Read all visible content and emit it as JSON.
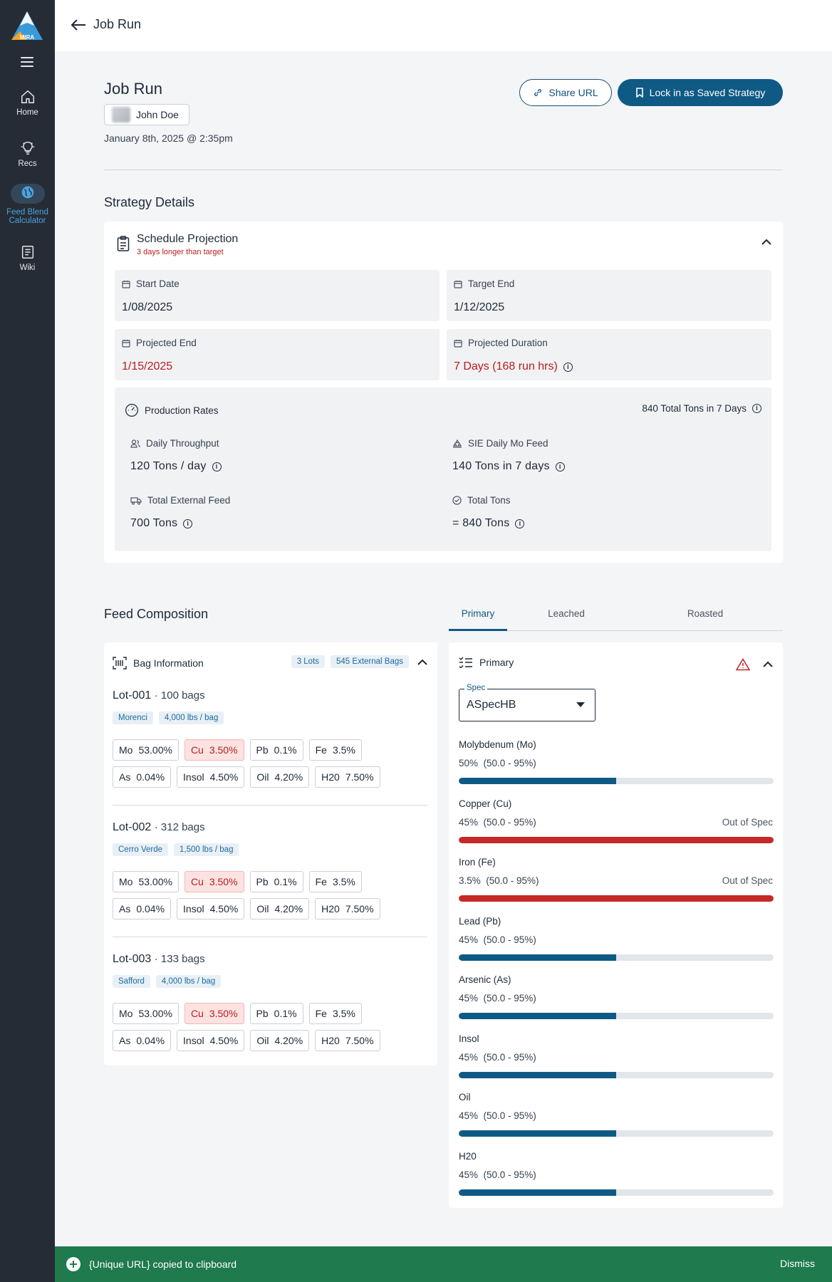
{
  "app": {
    "logo_text": "MIRA"
  },
  "sidebar": {
    "items": [
      {
        "label": "Home"
      },
      {
        "label": "Recs"
      },
      {
        "label_line1": "Feed Blend",
        "label_line2": "Calculator"
      },
      {
        "label": "Wiki"
      }
    ]
  },
  "header": {
    "back_label": "Job Run"
  },
  "page": {
    "title": "Job Run",
    "user_name": "John Doe",
    "date": "January 8th, 2025 @ 2:35pm",
    "share_label": "Share URL",
    "lock_label": "Lock in as Saved Strategy"
  },
  "strategy": {
    "title": "Strategy Details",
    "schedule": {
      "title": "Schedule Projection",
      "subtitle": "3 days longer than target",
      "start_label": "Start Date",
      "start_value": "1/08/2025",
      "target_label": "Target End",
      "target_value": "1/12/2025",
      "projected_label": "Projected End",
      "projected_value": "1/15/2025",
      "duration_label": "Projected Duration",
      "duration_value": "7 Days (168 run hrs)"
    },
    "production": {
      "title": "Production Rates",
      "summary": "840 Total Tons in 7 Days",
      "daily_label": "Daily Throughput",
      "daily_value": "120 Tons / day",
      "sie_label": "SIE Daily Mo Feed",
      "sie_value": "140 Tons in 7 days",
      "external_label": "Total External Feed",
      "external_value": "700 Tons",
      "total_label": "Total Tons",
      "total_value": "= 840 Tons"
    }
  },
  "feed": {
    "title": "Feed Composition",
    "tabs": [
      {
        "label": "Primary"
      },
      {
        "label": "Leached"
      },
      {
        "label": "Roasted"
      }
    ],
    "bag_info": {
      "title": "Bag Information",
      "lots_badge": "3 Lots",
      "bags_badge": "545 External Bags",
      "lots": [
        {
          "name": "Lot-001",
          "bags": "· 100 bags",
          "source": "Morenci",
          "weight": "4,000 lbs / bag",
          "chips": [
            {
              "el": "Mo",
              "v": "53.00%"
            },
            {
              "el": "Cu",
              "v": "3.50%"
            },
            {
              "el": "Pb",
              "v": "0.1%"
            },
            {
              "el": "Fe",
              "v": "3.5%"
            },
            {
              "el": "As",
              "v": "0.04%"
            },
            {
              "el": "Insol",
              "v": "4.50%"
            },
            {
              "el": "Oil",
              "v": "4.20%"
            },
            {
              "el": "H20",
              "v": "7.50%"
            }
          ]
        },
        {
          "name": "Lot-002",
          "bags": "· 312 bags",
          "source": "Cerro Verde",
          "weight": "1,500 lbs / bag",
          "chips": [
            {
              "el": "Mo",
              "v": "53.00%"
            },
            {
              "el": "Cu",
              "v": "3.50%"
            },
            {
              "el": "Pb",
              "v": "0.1%"
            },
            {
              "el": "Fe",
              "v": "3.5%"
            },
            {
              "el": "As",
              "v": "0.04%"
            },
            {
              "el": "Insol",
              "v": "4.50%"
            },
            {
              "el": "Oil",
              "v": "4.20%"
            },
            {
              "el": "H20",
              "v": "7.50%"
            }
          ]
        },
        {
          "name": "Lot-003",
          "bags": "· 133 bags",
          "source": "Safford",
          "weight": "4,000 lbs / bag",
          "chips": [
            {
              "el": "Mo",
              "v": "53.00%"
            },
            {
              "el": "Cu",
              "v": "3.50%"
            },
            {
              "el": "Pb",
              "v": "0.1%"
            },
            {
              "el": "Fe",
              "v": "3.5%"
            },
            {
              "el": "As",
              "v": "0.04%"
            },
            {
              "el": "Insol",
              "v": "4.50%"
            },
            {
              "el": "Oil",
              "v": "4.20%"
            },
            {
              "el": "H20",
              "v": "7.50%"
            }
          ]
        }
      ]
    },
    "primary": {
      "title": "Primary",
      "spec_label": "Spec",
      "spec_value": "ASpecHB",
      "elements": [
        {
          "name": "Molybdenum (Mo)",
          "value": "50%  (50.0 - 95%)",
          "fill": 0.5,
          "oos": ""
        },
        {
          "name": "Copper (Cu)",
          "value": "45%  (50.0 - 95%)",
          "fill": 1.0,
          "oos": "Out of Spec"
        },
        {
          "name": "Iron (Fe)",
          "value": "3.5%  (50.0 - 95%)",
          "fill": 1.0,
          "oos": "Out of Spec"
        },
        {
          "name": "Lead (Pb)",
          "value": "45%  (50.0 - 95%)",
          "fill": 0.5,
          "oos": ""
        },
        {
          "name": "Arsenic (As)",
          "value": "45%  (50.0 - 95%)",
          "fill": 0.5,
          "oos": ""
        },
        {
          "name": "Insol",
          "value": "45%  (50.0 - 95%)",
          "fill": 0.5,
          "oos": ""
        },
        {
          "name": "Oil",
          "value": "45%  (50.0 - 95%)",
          "fill": 0.5,
          "oos": ""
        },
        {
          "name": "H20",
          "value": "45%  (50.0 - 95%)",
          "fill": 0.5,
          "oos": ""
        }
      ]
    }
  },
  "toast": {
    "message": "{Unique URL} copied to clipboard",
    "dismiss": "Dismiss"
  },
  "colors": {
    "accent": "#0f5a85",
    "danger": "#c62828",
    "success": "#1f7a4d",
    "sidebar": "#262c35"
  }
}
